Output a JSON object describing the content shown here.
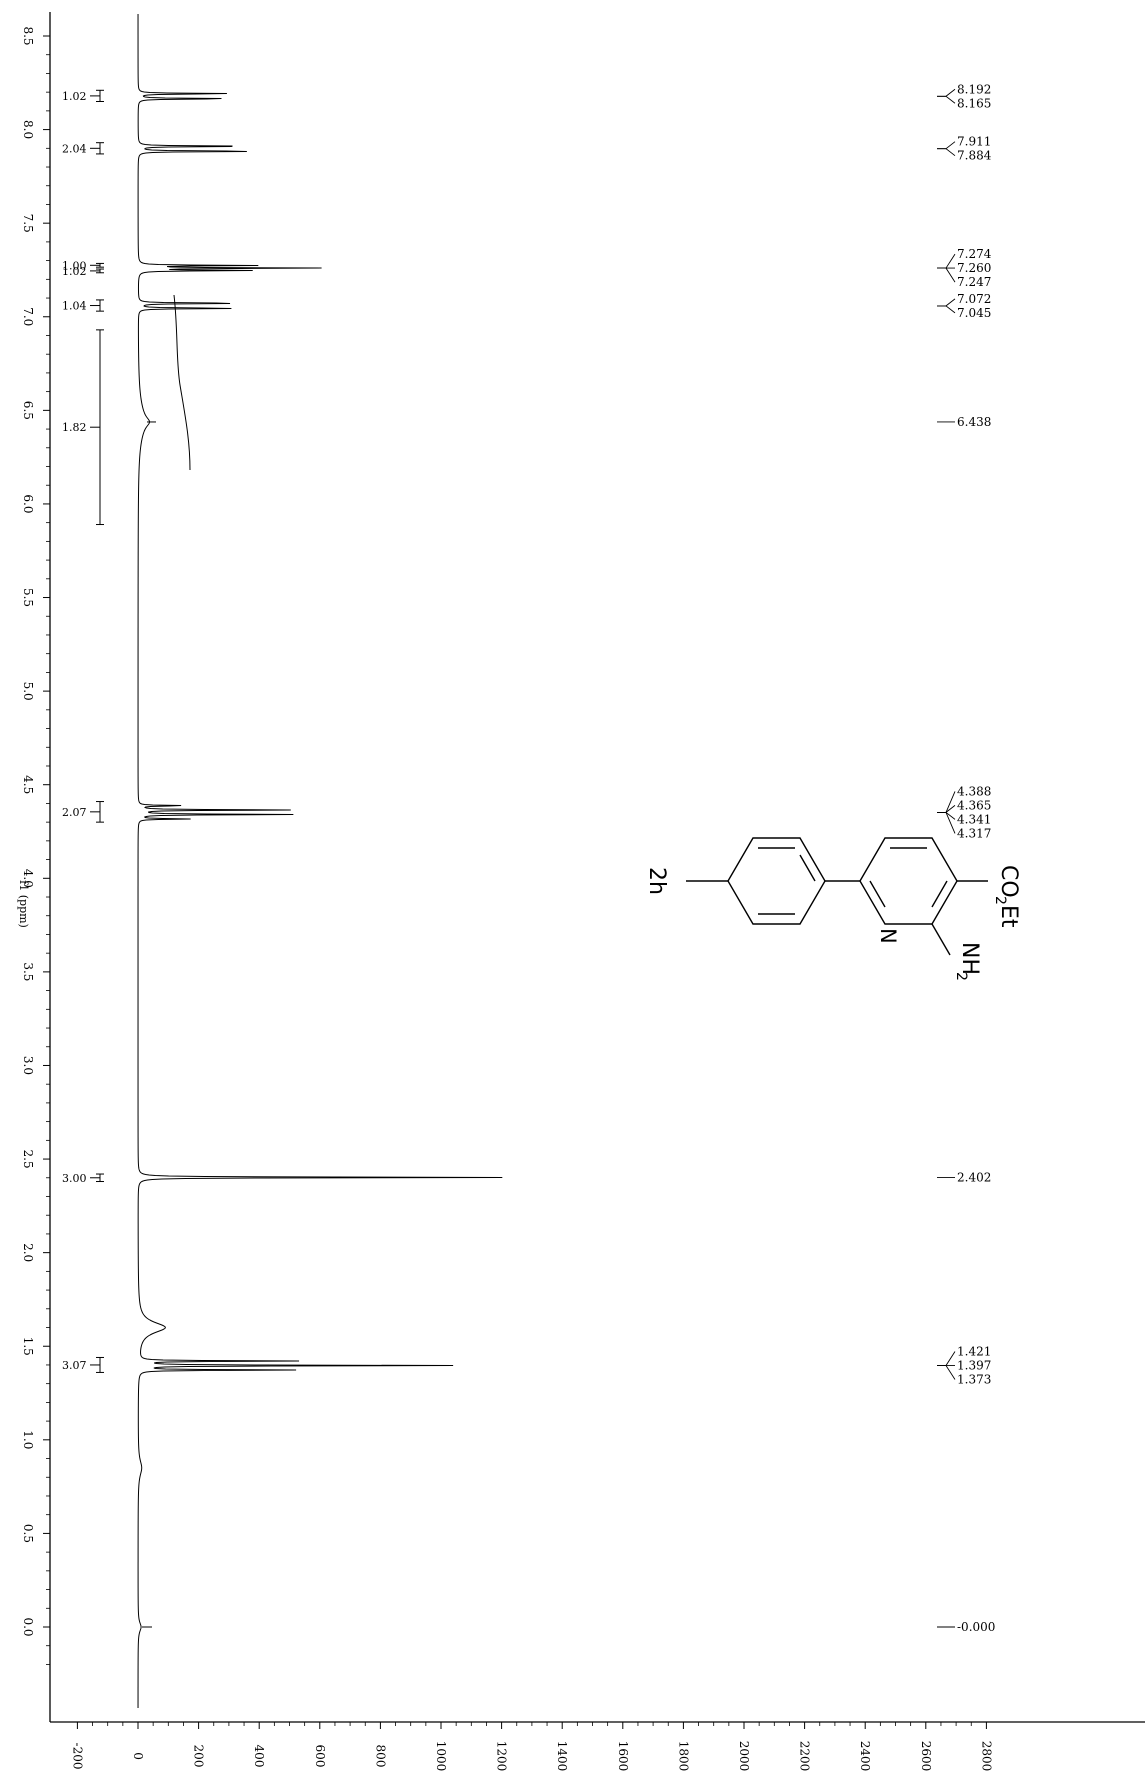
{
  "chart_data": {
    "type": "line",
    "title": "",
    "ylabel": "f1 (ppm)",
    "xlabel": "",
    "ylim": [
      8.5,
      -0.3
    ],
    "xlim": [
      -200,
      2800
    ],
    "ppm_ticks": [
      "8.5",
      "8.0",
      "7.5",
      "7.0",
      "6.5",
      "6.0",
      "5.5",
      "5.0",
      "4.5",
      "4.0",
      "3.5",
      "3.0",
      "2.5",
      "2.0",
      "1.5",
      "1.0",
      "0.5",
      "0.0"
    ],
    "intensity_ticks": [
      "-200",
      "0",
      "200",
      "400",
      "600",
      "800",
      "1000",
      "1200",
      "1400",
      "1600",
      "1800",
      "2000",
      "2200",
      "2400",
      "2600",
      "2800"
    ],
    "peaks": [
      {
        "ppm": 8.192,
        "height": 330
      },
      {
        "ppm": 8.165,
        "height": 340
      },
      {
        "ppm": 7.911,
        "height": 420
      },
      {
        "ppm": 7.884,
        "height": 440
      },
      {
        "ppm": 7.274,
        "height": 380
      },
      {
        "ppm": 7.26,
        "height": 620
      },
      {
        "ppm": 7.247,
        "height": 360
      },
      {
        "ppm": 7.072,
        "height": 380
      },
      {
        "ppm": 7.045,
        "height": 350
      },
      {
        "ppm": 6.438,
        "height": 20
      },
      {
        "ppm": 4.388,
        "height": 160
      },
      {
        "ppm": 4.365,
        "height": 500
      },
      {
        "ppm": 4.341,
        "height": 510
      },
      {
        "ppm": 4.317,
        "height": 170
      },
      {
        "ppm": 2.402,
        "height": 1270
      },
      {
        "ppm": 1.6,
        "height": 90
      },
      {
        "ppm": 1.421,
        "height": 520
      },
      {
        "ppm": 1.397,
        "height": 1030
      },
      {
        "ppm": 1.373,
        "height": 510
      },
      {
        "ppm": 0.0,
        "height": 10
      }
    ],
    "peak_labels": [
      {
        "anchor": 8.178,
        "labels": [
          "8.192",
          "8.165"
        ]
      },
      {
        "anchor": 7.898,
        "labels": [
          "7.911",
          "7.884"
        ]
      },
      {
        "anchor": 7.26,
        "labels": [
          "7.274",
          "7.260",
          "7.247"
        ]
      },
      {
        "anchor": 7.058,
        "labels": [
          "7.072",
          "7.045"
        ]
      },
      {
        "anchor": 6.438,
        "labels": [
          "6.438"
        ]
      },
      {
        "anchor": 4.352,
        "labels": [
          "4.388",
          "4.365",
          "4.341",
          "4.317"
        ]
      },
      {
        "anchor": 2.402,
        "labels": [
          "2.402"
        ]
      },
      {
        "anchor": 1.397,
        "labels": [
          "1.421",
          "1.397",
          "1.373"
        ]
      },
      {
        "anchor": 0.0,
        "labels": [
          "-0.000"
        ]
      }
    ],
    "integrals": [
      {
        "from": 8.21,
        "to": 8.15,
        "value": "1.02"
      },
      {
        "from": 7.93,
        "to": 7.87,
        "value": "2.04"
      },
      {
        "from": 7.285,
        "to": 7.265,
        "value": "1.00"
      },
      {
        "from": 7.255,
        "to": 7.235,
        "value": "1.02"
      },
      {
        "from": 7.09,
        "to": 7.03,
        "value": "1.04"
      },
      {
        "from": 6.93,
        "to": 5.89,
        "value": "1.82"
      },
      {
        "from": 4.41,
        "to": 4.3,
        "value": "2.07"
      },
      {
        "from": 2.42,
        "to": 2.38,
        "value": "3.00"
      },
      {
        "from": 1.44,
        "to": 1.36,
        "value": "3.07"
      }
    ]
  },
  "compound": {
    "label": "2h",
    "group_co2et": "CO",
    "group_co2et_sub": "2",
    "group_co2et_end": "Et",
    "group_nh2": "NH",
    "group_nh2_sub": "2",
    "ring_n": "N"
  }
}
